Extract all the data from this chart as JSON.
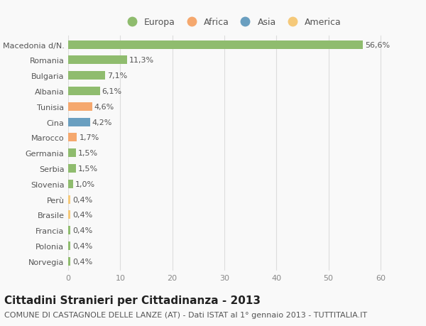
{
  "categories": [
    "Norvegia",
    "Polonia",
    "Francia",
    "Brasile",
    "Perù",
    "Slovenia",
    "Serbia",
    "Germania",
    "Marocco",
    "Cina",
    "Tunisia",
    "Albania",
    "Bulgaria",
    "Romania",
    "Macedonia d/N."
  ],
  "values": [
    0.4,
    0.4,
    0.4,
    0.4,
    0.4,
    1.0,
    1.5,
    1.5,
    1.7,
    4.2,
    4.6,
    6.1,
    7.1,
    11.3,
    56.6
  ],
  "labels": [
    "0,4%",
    "0,4%",
    "0,4%",
    "0,4%",
    "0,4%",
    "1,0%",
    "1,5%",
    "1,5%",
    "1,7%",
    "4,2%",
    "4,6%",
    "6,1%",
    "7,1%",
    "11,3%",
    "56,6%"
  ],
  "colors": [
    "#8fbc6e",
    "#8fbc6e",
    "#8fbc6e",
    "#f5c97a",
    "#f5c97a",
    "#8fbc6e",
    "#8fbc6e",
    "#8fbc6e",
    "#f5a86e",
    "#6a9fc0",
    "#f5a86e",
    "#8fbc6e",
    "#8fbc6e",
    "#8fbc6e",
    "#8fbc6e"
  ],
  "legend_labels": [
    "Europa",
    "Africa",
    "Asia",
    "America"
  ],
  "legend_colors": [
    "#8fbc6e",
    "#f5a86e",
    "#6a9fc0",
    "#f5c97a"
  ],
  "title": "Cittadini Stranieri per Cittadinanza - 2013",
  "subtitle": "COMUNE DI CASTAGNOLE DELLE LANZE (AT) - Dati ISTAT al 1° gennaio 2013 - TUTTITALIA.IT",
  "xlim": [
    0,
    63
  ],
  "xticks": [
    0,
    10,
    20,
    30,
    40,
    50,
    60
  ],
  "background_color": "#f9f9f9",
  "grid_color": "#dddddd",
  "bar_height": 0.55,
  "title_fontsize": 11,
  "subtitle_fontsize": 8,
  "tick_fontsize": 8,
  "value_label_fontsize": 8,
  "legend_fontsize": 9
}
